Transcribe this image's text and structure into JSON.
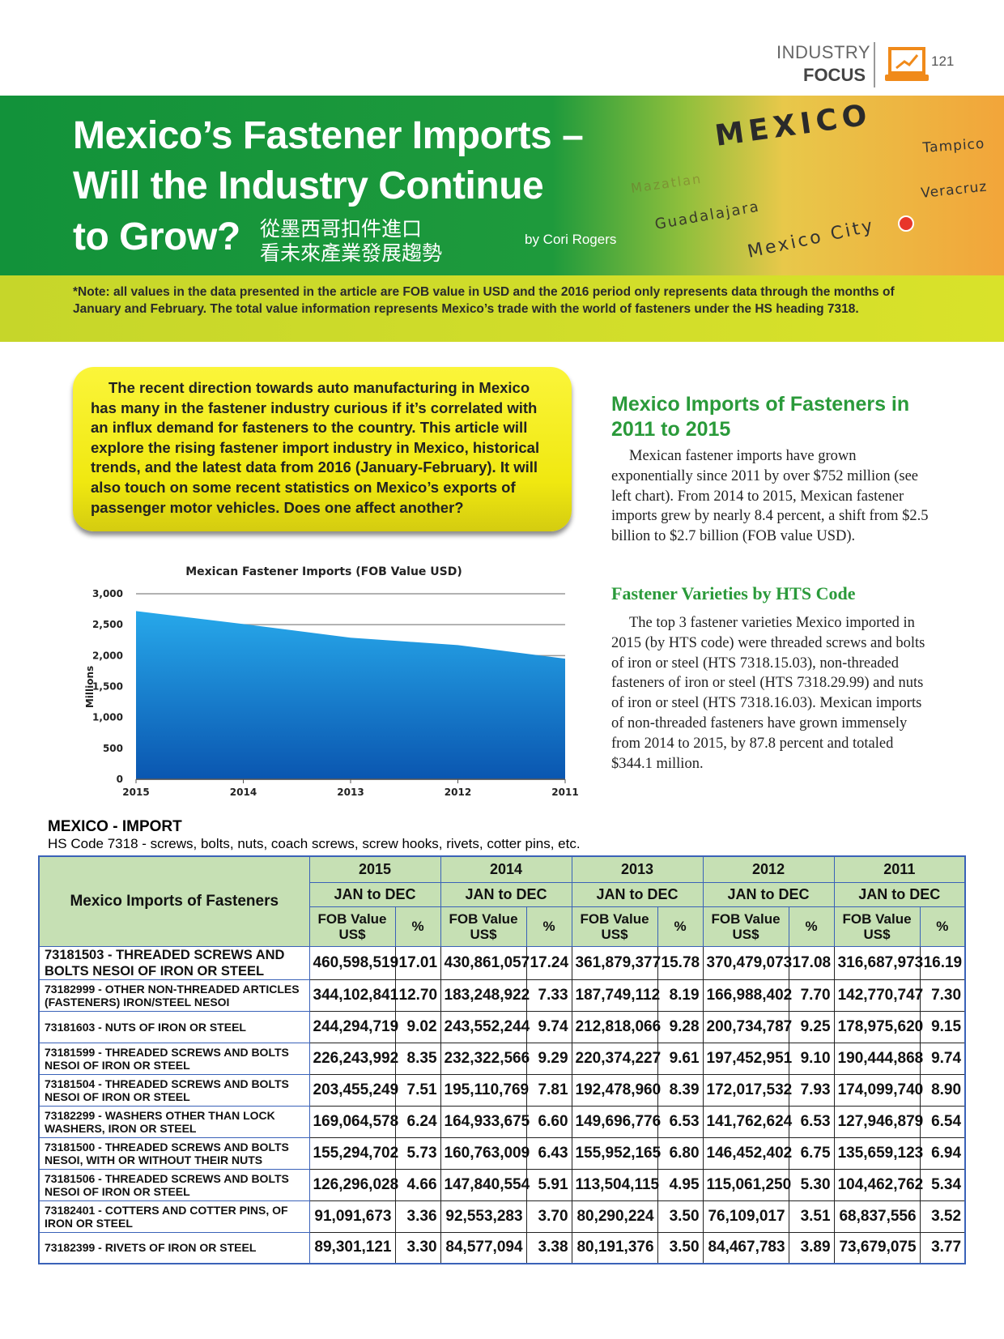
{
  "header": {
    "section_top": "INDUSTRY",
    "section_bottom": "FOCUS",
    "page_number": "121"
  },
  "banner": {
    "title_lines": [
      "Mexico’s Fastener Imports –",
      "Will the Industry Continue",
      "to Grow?"
    ],
    "chinese_title_lines": [
      "從墨西哥扣件進口",
      "看未來產業發展趨勢"
    ],
    "byline": "by Cori Rogers",
    "map_labels": [
      "MEXICO",
      "Tampico",
      "Mazatlan",
      "Guadalajara",
      "Veracruz",
      "Mexico City"
    ]
  },
  "note": "*Note: all values in the data presented in the article are FOB value in USD and the 2016 period only represents data through the months of January and February. The total value information represents Mexico’s trade with the world of fasteners under the HS heading 7318.",
  "intro": "The recent direction towards auto manufacturing in Mexico has many in the fastener industry curious if it’s correlated with an influx demand for fasteners to the country. This article will explore the rising fastener import industry in Mexico, historical trends, and the latest data from 2016 (January-February). It will also touch on some recent statistics on Mexico’s exports of passenger motor vehicles. Does one affect another?",
  "sections": [
    {
      "heading": "Mexico Imports of Fasteners in 2011 to 2015",
      "body": "Mexican fastener imports have grown exponentially since 2011 by over $752 million (see left chart). From 2014 to 2015, Mexican fastener imports grew by nearly 8.4 percent, a shift from $2.5 billion to $2.7 billion (FOB value USD)."
    },
    {
      "heading": "Fastener Varieties by HTS Code",
      "body": "The top 3 fastener varieties Mexico imported in 2015 (by HTS code) were threaded screws and bolts of iron or steel (HTS 7318.15.03), non-threaded fasteners of iron or steel (HTS 7318.29.99) and nuts of iron or steel (HTS 7318.16.03). Mexican imports of non-threaded fasteners have grown immensely from 2014 to 2015, by 87.8 percent and totaled $344.1 million."
    }
  ],
  "chart_data": {
    "type": "area",
    "title": "Mexican Fastener Imports (FOB Value USD)",
    "y_label": "Millions",
    "categories": [
      "2015",
      "2014",
      "2013",
      "2012",
      "2011"
    ],
    "values": [
      2720,
      2510,
      2290,
      2170,
      1950
    ],
    "color": "#1b8fe0",
    "ylim": [
      0,
      3000
    ],
    "yticks": [
      0,
      500,
      {
        "value": 1000,
        "label": "1,000"
      },
      {
        "value": 1500,
        "label": "1,500"
      },
      {
        "value": 2000,
        "label": "2,000"
      },
      {
        "value": 2500,
        "label": "2,500"
      },
      {
        "value": 3000,
        "label": "3,000"
      }
    ],
    "grid": true
  },
  "table": {
    "title": "MEXICO - IMPORT",
    "subtitle": "HS Code 7318 - screws, bolts, nuts, coach screws, screw hooks, rivets, cotter pins, etc.",
    "corner": "Mexico Imports of Fasteners",
    "years": [
      "2015",
      "2014",
      "2013",
      "2012",
      "2011"
    ],
    "period": "JAN to DEC",
    "value_header": "FOB Value US$",
    "pct_header": "%",
    "rows": [
      {
        "label": "73181503 - THREADED SCREWS AND BOLTS NESOI OF IRON OR STEEL",
        "cells": [
          [
            "460,598,519",
            "17.01"
          ],
          [
            "430,861,057",
            "17.24"
          ],
          [
            "361,879,377",
            "15.78"
          ],
          [
            "370,479,073",
            "17.08"
          ],
          [
            "316,687,973",
            "16.19"
          ]
        ]
      },
      {
        "label": "73182999 - OTHER NON-THREADED ARTICLES (FASTENERS) IRON/STEEL NESOI",
        "cells": [
          [
            "344,102,841",
            "12.70"
          ],
          [
            "183,248,922",
            "7.33"
          ],
          [
            "187,749,112",
            "8.19"
          ],
          [
            "166,988,402",
            "7.70"
          ],
          [
            "142,770,747",
            "7.30"
          ]
        ]
      },
      {
        "label": "73181603 - NUTS OF IRON OR STEEL",
        "cells": [
          [
            "244,294,719",
            "9.02"
          ],
          [
            "243,552,244",
            "9.74"
          ],
          [
            "212,818,066",
            "9.28"
          ],
          [
            "200,734,787",
            "9.25"
          ],
          [
            "178,975,620",
            "9.15"
          ]
        ]
      },
      {
        "label": "73181599 - THREADED SCREWS AND BOLTS NESOI OF IRON OR STEEL",
        "cells": [
          [
            "226,243,992",
            "8.35"
          ],
          [
            "232,322,566",
            "9.29"
          ],
          [
            "220,374,227",
            "9.61"
          ],
          [
            "197,452,951",
            "9.10"
          ],
          [
            "190,444,868",
            "9.74"
          ]
        ]
      },
      {
        "label": "73181504 - THREADED SCREWS AND BOLTS NESOI OF IRON OR STEEL",
        "cells": [
          [
            "203,455,249",
            "7.51"
          ],
          [
            "195,110,769",
            "7.81"
          ],
          [
            "192,478,960",
            "8.39"
          ],
          [
            "172,017,532",
            "7.93"
          ],
          [
            "174,099,740",
            "8.90"
          ]
        ]
      },
      {
        "label": "73182299 - WASHERS OTHER THAN LOCK WASHERS, IRON OR STEEL",
        "cells": [
          [
            "169,064,578",
            "6.24"
          ],
          [
            "164,933,675",
            "6.60"
          ],
          [
            "149,696,776",
            "6.53"
          ],
          [
            "141,762,624",
            "6.53"
          ],
          [
            "127,946,879",
            "6.54"
          ]
        ]
      },
      {
        "label": "73181500 - THREADED SCREWS AND BOLTS NESOI, WITH OR WITHOUT THEIR NUTS",
        "cells": [
          [
            "155,294,702",
            "5.73"
          ],
          [
            "160,763,009",
            "6.43"
          ],
          [
            "155,952,165",
            "6.80"
          ],
          [
            "146,452,402",
            "6.75"
          ],
          [
            "135,659,123",
            "6.94"
          ]
        ]
      },
      {
        "label": "73181506 - THREADED SCREWS AND BOLTS NESOI OF IRON OR STEEL",
        "cells": [
          [
            "126,296,028",
            "4.66"
          ],
          [
            "147,840,554",
            "5.91"
          ],
          [
            "113,504,115",
            "4.95"
          ],
          [
            "115,061,250",
            "5.30"
          ],
          [
            "104,462,762",
            "5.34"
          ]
        ]
      },
      {
        "label": "73182401 - COTTERS AND COTTER PINS, OF IRON OR STEEL",
        "cells": [
          [
            "91,091,673",
            "3.36"
          ],
          [
            "92,553,283",
            "3.70"
          ],
          [
            "80,290,224",
            "3.50"
          ],
          [
            "76,109,017",
            "3.51"
          ],
          [
            "68,837,556",
            "3.52"
          ]
        ]
      },
      {
        "label": "73182399 - RIVETS OF IRON OR STEEL",
        "cells": [
          [
            "89,301,121",
            "3.30"
          ],
          [
            "84,577,094",
            "3.38"
          ],
          [
            "80,191,376",
            "3.50"
          ],
          [
            "84,467,783",
            "3.89"
          ],
          [
            "73,679,075",
            "3.77"
          ]
        ]
      }
    ]
  }
}
